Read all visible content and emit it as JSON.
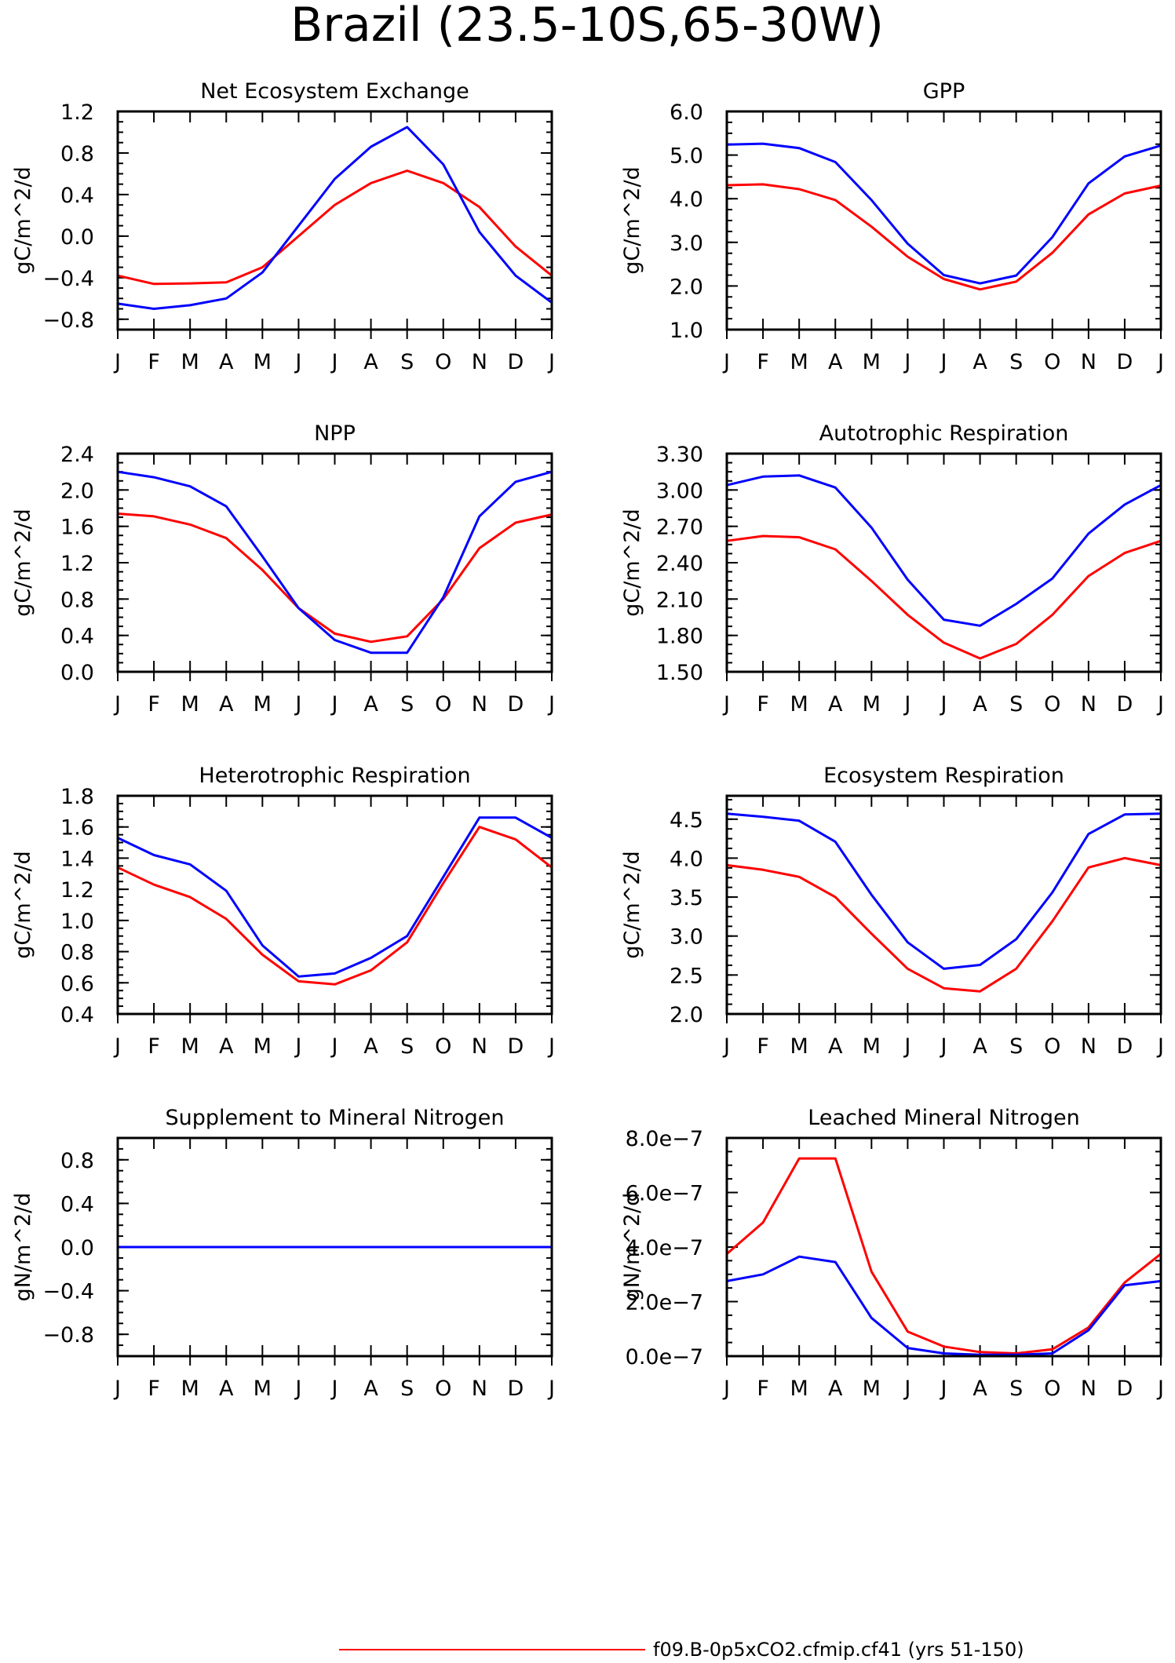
{
  "title": "Brazil (23.5-10S,65-30W)",
  "months": [
    "J",
    "F",
    "M",
    "A",
    "M",
    "J",
    "J",
    "A",
    "S",
    "O",
    "N",
    "D",
    "J"
  ],
  "legend": {
    "label": "f09.B-0p5xCO2.cfmip.cf41 (yrs 51-150)",
    "color": "#ff0000"
  },
  "colors": {
    "red": "#ff0000",
    "blue": "#0000ff"
  },
  "chart_data": [
    {
      "type": "line",
      "title": "Net Ecosystem Exchange",
      "ylabel": "gC/m^2/d",
      "ylim": [
        -0.9,
        1.2
      ],
      "yticks": [
        "-0.8",
        "-0.4",
        "0.0",
        "0.4",
        "0.8",
        "1.2"
      ],
      "categories": [
        "J",
        "F",
        "M",
        "A",
        "M",
        "J",
        "J",
        "A",
        "S",
        "O",
        "N",
        "D",
        "J"
      ],
      "series": [
        {
          "color": "#ff0000",
          "values": [
            -0.38,
            -0.46,
            -0.455,
            -0.445,
            -0.3,
            0.0,
            0.3,
            0.51,
            0.63,
            0.51,
            0.28,
            -0.1,
            -0.38
          ]
        },
        {
          "color": "#0000ff",
          "values": [
            -0.65,
            -0.7,
            -0.665,
            -0.6,
            -0.35,
            0.1,
            0.55,
            0.86,
            1.05,
            0.69,
            0.04,
            -0.38,
            -0.64
          ]
        }
      ]
    },
    {
      "type": "line",
      "title": "GPP",
      "ylabel": "gC/m^2/d",
      "ylim": [
        1.0,
        6.0
      ],
      "yticks": [
        "1.0",
        "2.0",
        "3.0",
        "4.0",
        "5.0",
        "6.0"
      ],
      "categories": [
        "J",
        "F",
        "M",
        "A",
        "M",
        "J",
        "J",
        "A",
        "S",
        "O",
        "N",
        "D",
        "J"
      ],
      "series": [
        {
          "color": "#ff0000",
          "values": [
            4.31,
            4.33,
            4.22,
            3.97,
            3.36,
            2.67,
            2.16,
            1.92,
            2.1,
            2.76,
            3.64,
            4.12,
            4.3
          ]
        },
        {
          "color": "#0000ff",
          "values": [
            5.24,
            5.26,
            5.16,
            4.84,
            3.97,
            2.97,
            2.25,
            2.06,
            2.24,
            3.12,
            4.35,
            4.97,
            5.22
          ]
        }
      ]
    },
    {
      "type": "line",
      "title": "NPP",
      "ylabel": "gC/m^2/d",
      "ylim": [
        0.0,
        2.4
      ],
      "yticks": [
        "0.0",
        "0.4",
        "0.8",
        "1.2",
        "1.6",
        "2.0",
        "2.4"
      ],
      "categories": [
        "J",
        "F",
        "M",
        "A",
        "M",
        "J",
        "J",
        "A",
        "S",
        "O",
        "N",
        "D",
        "J"
      ],
      "series": [
        {
          "color": "#ff0000",
          "values": [
            1.74,
            1.71,
            1.62,
            1.47,
            1.12,
            0.7,
            0.42,
            0.33,
            0.39,
            0.8,
            1.36,
            1.64,
            1.73
          ]
        },
        {
          "color": "#0000ff",
          "values": [
            2.2,
            2.14,
            2.04,
            1.82,
            1.27,
            0.7,
            0.35,
            0.21,
            0.21,
            0.82,
            1.71,
            2.09,
            2.2
          ]
        }
      ]
    },
    {
      "type": "line",
      "title": "Autotrophic Respiration",
      "ylabel": "gC/m^2/d",
      "ylim": [
        1.5,
        3.3
      ],
      "yticks": [
        "1.50",
        "1.80",
        "2.10",
        "2.40",
        "2.70",
        "3.00",
        "3.30"
      ],
      "categories": [
        "J",
        "F",
        "M",
        "A",
        "M",
        "J",
        "J",
        "A",
        "S",
        "O",
        "N",
        "D",
        "J"
      ],
      "series": [
        {
          "color": "#ff0000",
          "values": [
            2.58,
            2.62,
            2.61,
            2.51,
            2.25,
            1.97,
            1.74,
            1.61,
            1.73,
            1.97,
            2.29,
            2.48,
            2.58
          ]
        },
        {
          "color": "#0000ff",
          "values": [
            3.04,
            3.11,
            3.12,
            3.02,
            2.69,
            2.26,
            1.93,
            1.88,
            2.06,
            2.27,
            2.64,
            2.88,
            3.04
          ]
        }
      ]
    },
    {
      "type": "line",
      "title": "Heterotrophic Respiration",
      "ylabel": "gC/m^2/d",
      "ylim": [
        0.4,
        1.8
      ],
      "yticks": [
        "0.4",
        "0.6",
        "0.8",
        "1.0",
        "1.2",
        "1.4",
        "1.6",
        "1.8"
      ],
      "categories": [
        "J",
        "F",
        "M",
        "A",
        "M",
        "J",
        "J",
        "A",
        "S",
        "O",
        "N",
        "D",
        "J"
      ],
      "series": [
        {
          "color": "#ff0000",
          "values": [
            1.34,
            1.23,
            1.15,
            1.01,
            0.78,
            0.61,
            0.59,
            0.68,
            0.86,
            1.24,
            1.6,
            1.52,
            1.34
          ]
        },
        {
          "color": "#0000ff",
          "values": [
            1.53,
            1.42,
            1.36,
            1.19,
            0.84,
            0.64,
            0.66,
            0.76,
            0.9,
            1.28,
            1.66,
            1.66,
            1.53
          ]
        }
      ]
    },
    {
      "type": "line",
      "title": "Ecosystem Respiration",
      "ylabel": "gC/m^2/d",
      "ylim": [
        2.0,
        4.8
      ],
      "yticks": [
        "2.0",
        "2.5",
        "3.0",
        "3.5",
        "4.0",
        "4.5"
      ],
      "categories": [
        "J",
        "F",
        "M",
        "A",
        "M",
        "J",
        "J",
        "A",
        "S",
        "O",
        "N",
        "D",
        "J"
      ],
      "series": [
        {
          "color": "#ff0000",
          "values": [
            3.91,
            3.85,
            3.76,
            3.5,
            3.03,
            2.58,
            2.33,
            2.29,
            2.58,
            3.19,
            3.88,
            4.0,
            3.91
          ]
        },
        {
          "color": "#0000ff",
          "values": [
            4.57,
            4.53,
            4.48,
            4.21,
            3.53,
            2.92,
            2.58,
            2.63,
            2.96,
            3.56,
            4.31,
            4.56,
            4.57
          ]
        }
      ]
    },
    {
      "type": "line",
      "title": "Supplement to Mineral Nitrogen",
      "ylabel": "gN/m^2/d",
      "ylim": [
        -1.0,
        1.0
      ],
      "yticks": [
        "-0.8",
        "-0.4",
        "0.0",
        "0.4",
        "0.8"
      ],
      "categories": [
        "J",
        "F",
        "M",
        "A",
        "M",
        "J",
        "J",
        "A",
        "S",
        "O",
        "N",
        "D",
        "J"
      ],
      "series": [
        {
          "color": "#ff0000",
          "values": [
            0,
            0,
            0,
            0,
            0,
            0,
            0,
            0,
            0,
            0,
            0,
            0,
            0
          ]
        },
        {
          "color": "#0000ff",
          "values": [
            0,
            0,
            0,
            0,
            0,
            0,
            0,
            0,
            0,
            0,
            0,
            0,
            0
          ]
        }
      ]
    },
    {
      "type": "line",
      "title": "Leached Mineral Nitrogen",
      "ylabel": "gN/m^2/d",
      "ylim": [
        0.0,
        8e-07
      ],
      "yticks": [
        "0.0e-7",
        "2.0e-7",
        "4.0e-7",
        "6.0e-7",
        "8.0e-7"
      ],
      "categories": [
        "J",
        "F",
        "M",
        "A",
        "M",
        "J",
        "J",
        "A",
        "S",
        "O",
        "N",
        "D",
        "J"
      ],
      "series": [
        {
          "color": "#ff0000",
          "values": [
            3.75e-07,
            4.9e-07,
            7.25e-07,
            7.25e-07,
            3.1e-07,
            9e-08,
            3.5e-08,
            1.5e-08,
            1e-08,
            2.5e-08,
            1.05e-07,
            2.7e-07,
            3.75e-07
          ]
        },
        {
          "color": "#0000ff",
          "values": [
            2.75e-07,
            3e-07,
            3.65e-07,
            3.45e-07,
            1.4e-07,
            3e-08,
            1e-08,
            5e-09,
            5e-09,
            1e-08,
            9.5e-08,
            2.6e-07,
            2.75e-07
          ]
        }
      ]
    }
  ]
}
